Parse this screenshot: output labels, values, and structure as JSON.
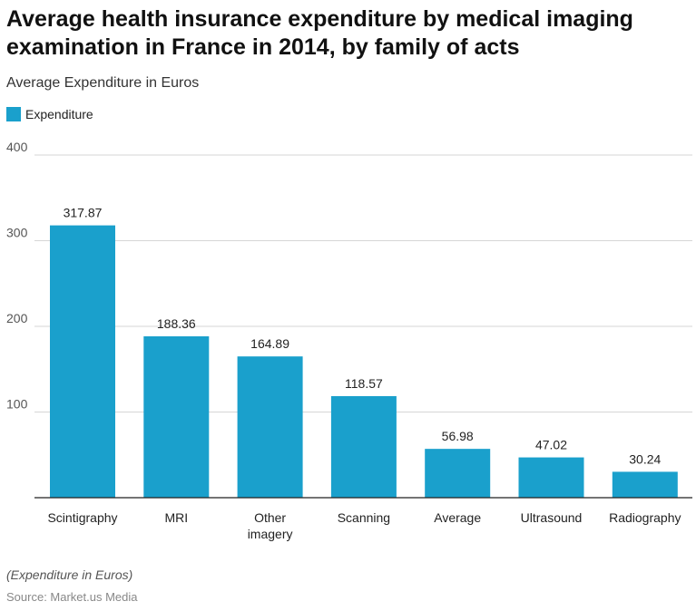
{
  "chart_data": {
    "type": "bar",
    "title": "Average health insurance expenditure by medical imaging examination in France in 2014, by family of acts",
    "subtitle": "Average Expenditure in Euros",
    "categories": [
      "Scintigraphy",
      "MRI",
      "Other imagery",
      "Scanning",
      "Average",
      "Ultrasound",
      "Radiography"
    ],
    "series": [
      {
        "name": "Expenditure",
        "values": [
          317.87,
          188.36,
          164.89,
          118.57,
          56.98,
          47.02,
          30.24
        ],
        "color": "#1aa0cc"
      }
    ],
    "ylim": [
      0,
      400
    ],
    "yticks": [
      100,
      200,
      300,
      400
    ],
    "grid": true,
    "legend": "top-left",
    "xlabel": "",
    "ylabel": ""
  },
  "footer": {
    "note": "(Expenditure in Euros)",
    "source": "Source: Market.us Media"
  }
}
